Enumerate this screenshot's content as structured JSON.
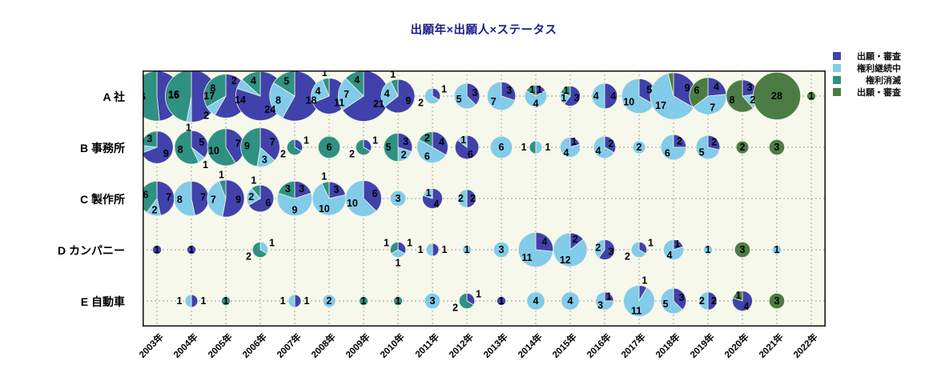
{
  "chart_data": {
    "type": "pie",
    "title": "出願年×出願人×ステータス",
    "legend_position": "top-right",
    "grid": "dashed",
    "rows": [
      "A 社",
      "B 事務所",
      "C 製作所",
      "D カンパニー",
      "E 自動車"
    ],
    "years": [
      "2003年",
      "2004年",
      "2005年",
      "2006年",
      "2007年",
      "2008年",
      "2009年",
      "2010年",
      "2011年",
      "2012年",
      "2013年",
      "2014年",
      "2015年",
      "2016年",
      "2017年",
      "2018年",
      "2019年",
      "2020年",
      "2021年",
      "2022年"
    ],
    "series": [
      {
        "name": "出願・審査",
        "color": "#4141ab"
      },
      {
        "name": "権利継続中",
        "color": "#82cbe9"
      },
      {
        "name": "権利消滅",
        "color": "#2f9182"
      },
      {
        "name": "出願・審査",
        "color": "#4c7c44"
      }
    ],
    "slice_order": "clockwise-from-top, values array matches series order",
    "colors": {
      "plot_background": "#f7f8ec",
      "grid": "#999999",
      "frame": "#1a1a1a",
      "title": "#1c1c8a"
    },
    "cells": [
      {
        "r": 0,
        "y": 0,
        "v": [
          15,
          0,
          16,
          0
        ]
      },
      {
        "r": 0,
        "y": 1,
        "v": [
          17,
          1,
          16,
          0
        ]
      },
      {
        "r": 0,
        "y": 2,
        "v": [
          14,
          2,
          8,
          0
        ]
      },
      {
        "r": 0,
        "y": 3,
        "v": [
          24,
          2,
          4,
          0
        ]
      },
      {
        "r": 0,
        "y": 4,
        "v": [
          18,
          8,
          5,
          0
        ]
      },
      {
        "r": 0,
        "y": 5,
        "v": [
          11,
          4,
          1,
          0
        ]
      },
      {
        "r": 0,
        "y": 6,
        "v": [
          21,
          7,
          4,
          0
        ]
      },
      {
        "r": 0,
        "y": 7,
        "v": [
          9,
          4,
          1,
          0
        ]
      },
      {
        "r": 0,
        "y": 8,
        "v": [
          1,
          2,
          0,
          0
        ]
      },
      {
        "r": 0,
        "y": 9,
        "v": [
          3,
          5,
          0,
          0
        ]
      },
      {
        "r": 0,
        "y": 10,
        "v": [
          3,
          7,
          0,
          0
        ]
      },
      {
        "r": 0,
        "y": 11,
        "v": [
          1,
          4,
          1,
          0
        ]
      },
      {
        "r": 0,
        "y": 12,
        "v": [
          3,
          1,
          1,
          0
        ]
      },
      {
        "r": 0,
        "y": 13,
        "v": [
          4,
          4,
          0,
          0
        ]
      },
      {
        "r": 0,
        "y": 14,
        "v": [
          5,
          10,
          0,
          0
        ]
      },
      {
        "r": 0,
        "y": 15,
        "v": [
          9,
          17,
          0,
          1
        ]
      },
      {
        "r": 0,
        "y": 16,
        "v": [
          4,
          7,
          0,
          6
        ]
      },
      {
        "r": 0,
        "y": 17,
        "v": [
          3,
          2,
          0,
          8
        ]
      },
      {
        "r": 0,
        "y": 18,
        "v": [
          0,
          0,
          0,
          28
        ]
      },
      {
        "r": 0,
        "y": 19,
        "v": [
          0,
          0,
          0,
          1
        ]
      },
      {
        "r": 1,
        "y": 0,
        "v": [
          9,
          1,
          3,
          0
        ]
      },
      {
        "r": 1,
        "y": 1,
        "v": [
          5,
          1,
          8,
          0
        ]
      },
      {
        "r": 1,
        "y": 2,
        "v": [
          7,
          0,
          10,
          0
        ]
      },
      {
        "r": 1,
        "y": 3,
        "v": [
          7,
          3,
          9,
          0
        ]
      },
      {
        "r": 1,
        "y": 4,
        "v": [
          1,
          0,
          2,
          0
        ]
      },
      {
        "r": 1,
        "y": 5,
        "v": [
          0,
          0,
          6,
          0
        ]
      },
      {
        "r": 1,
        "y": 6,
        "v": [
          1,
          0,
          2,
          0
        ]
      },
      {
        "r": 1,
        "y": 7,
        "v": [
          3,
          2,
          5,
          0
        ]
      },
      {
        "r": 1,
        "y": 8,
        "v": [
          4,
          6,
          2,
          0
        ]
      },
      {
        "r": 1,
        "y": 9,
        "v": [
          6,
          1,
          0,
          0
        ]
      },
      {
        "r": 1,
        "y": 10,
        "v": [
          0,
          6,
          0,
          0
        ]
      },
      {
        "r": 1,
        "y": 11,
        "v": [
          0,
          1,
          1,
          0
        ]
      },
      {
        "r": 1,
        "y": 12,
        "v": [
          1,
          4,
          0,
          0
        ]
      },
      {
        "r": 1,
        "y": 13,
        "v": [
          2,
          4,
          0,
          0
        ]
      },
      {
        "r": 1,
        "y": 14,
        "v": [
          0,
          2,
          0,
          0
        ]
      },
      {
        "r": 1,
        "y": 15,
        "v": [
          2,
          6,
          0,
          0
        ]
      },
      {
        "r": 1,
        "y": 16,
        "v": [
          2,
          5,
          0,
          0
        ]
      },
      {
        "r": 1,
        "y": 17,
        "v": [
          0,
          0,
          0,
          2
        ]
      },
      {
        "r": 1,
        "y": 18,
        "v": [
          0,
          0,
          0,
          3
        ]
      },
      {
        "r": 2,
        "y": 0,
        "v": [
          7,
          2,
          6,
          0
        ]
      },
      {
        "r": 2,
        "y": 1,
        "v": [
          7,
          8,
          0,
          0
        ]
      },
      {
        "r": 2,
        "y": 2,
        "v": [
          9,
          7,
          1,
          0
        ]
      },
      {
        "r": 2,
        "y": 3,
        "v": [
          6,
          2,
          1,
          0
        ]
      },
      {
        "r": 2,
        "y": 4,
        "v": [
          3,
          9,
          3,
          0
        ]
      },
      {
        "r": 2,
        "y": 5,
        "v": [
          3,
          10,
          1,
          0
        ]
      },
      {
        "r": 2,
        "y": 6,
        "v": [
          6,
          10,
          0,
          0
        ]
      },
      {
        "r": 2,
        "y": 7,
        "v": [
          0,
          3,
          0,
          0
        ]
      },
      {
        "r": 2,
        "y": 8,
        "v": [
          4,
          1,
          0,
          0
        ]
      },
      {
        "r": 2,
        "y": 9,
        "v": [
          2,
          2,
          0,
          0
        ]
      },
      {
        "r": 3,
        "y": 0,
        "v": [
          1,
          0,
          0,
          0
        ]
      },
      {
        "r": 3,
        "y": 1,
        "v": [
          1,
          0,
          0,
          0
        ]
      },
      {
        "r": 3,
        "y": 3,
        "v": [
          0,
          1,
          2,
          0
        ]
      },
      {
        "r": 3,
        "y": 7,
        "v": [
          1,
          1,
          1,
          0
        ]
      },
      {
        "r": 3,
        "y": 8,
        "v": [
          1,
          1,
          0,
          0
        ]
      },
      {
        "r": 3,
        "y": 9,
        "v": [
          0,
          1,
          0,
          0
        ]
      },
      {
        "r": 3,
        "y": 10,
        "v": [
          0,
          3,
          0,
          0
        ]
      },
      {
        "r": 3,
        "y": 11,
        "v": [
          4,
          11,
          0,
          0
        ]
      },
      {
        "r": 3,
        "y": 12,
        "v": [
          2,
          12,
          0,
          0
        ]
      },
      {
        "r": 3,
        "y": 13,
        "v": [
          3,
          2,
          0,
          0
        ]
      },
      {
        "r": 3,
        "y": 14,
        "v": [
          1,
          2,
          0,
          0
        ]
      },
      {
        "r": 3,
        "y": 15,
        "v": [
          1,
          4,
          0,
          0
        ]
      },
      {
        "r": 3,
        "y": 16,
        "v": [
          0,
          1,
          0,
          0
        ]
      },
      {
        "r": 3,
        "y": 17,
        "v": [
          0,
          0,
          0,
          3
        ]
      },
      {
        "r": 3,
        "y": 18,
        "v": [
          0,
          1,
          0,
          0
        ]
      },
      {
        "r": 4,
        "y": 1,
        "v": [
          1,
          1,
          0,
          0
        ]
      },
      {
        "r": 4,
        "y": 2,
        "v": [
          0,
          0,
          1,
          0
        ]
      },
      {
        "r": 4,
        "y": 4,
        "v": [
          1,
          1,
          0,
          0
        ]
      },
      {
        "r": 4,
        "y": 5,
        "v": [
          0,
          2,
          0,
          0
        ]
      },
      {
        "r": 4,
        "y": 6,
        "v": [
          0,
          0,
          1,
          0
        ]
      },
      {
        "r": 4,
        "y": 7,
        "v": [
          0,
          0,
          1,
          0
        ]
      },
      {
        "r": 4,
        "y": 8,
        "v": [
          0,
          3,
          0,
          0
        ]
      },
      {
        "r": 4,
        "y": 9,
        "v": [
          1,
          0,
          2,
          0
        ]
      },
      {
        "r": 4,
        "y": 10,
        "v": [
          1,
          0,
          0,
          0
        ]
      },
      {
        "r": 4,
        "y": 11,
        "v": [
          0,
          4,
          0,
          0
        ]
      },
      {
        "r": 4,
        "y": 12,
        "v": [
          0,
          4,
          0,
          0
        ]
      },
      {
        "r": 4,
        "y": 13,
        "v": [
          1,
          3,
          0,
          0
        ]
      },
      {
        "r": 4,
        "y": 14,
        "v": [
          1,
          11,
          0,
          0
        ]
      },
      {
        "r": 4,
        "y": 15,
        "v": [
          3,
          5,
          0,
          0
        ]
      },
      {
        "r": 4,
        "y": 16,
        "v": [
          2,
          2,
          0,
          0
        ]
      },
      {
        "r": 4,
        "y": 17,
        "v": [
          4,
          0,
          0,
          1
        ]
      },
      {
        "r": 4,
        "y": 18,
        "v": [
          0,
          0,
          0,
          3
        ]
      }
    ]
  }
}
